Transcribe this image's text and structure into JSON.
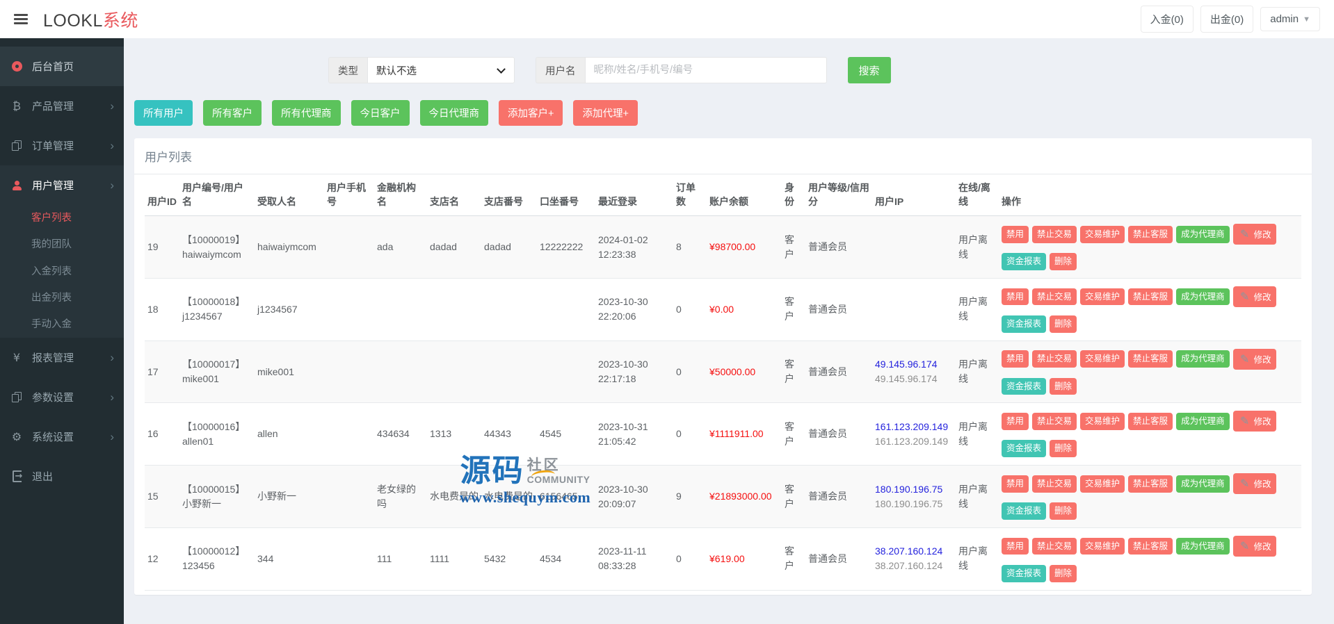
{
  "colors": {
    "accent": "#e9595d",
    "red": "#f8726a",
    "green": "#5cc35c",
    "teal": "#36c2c0",
    "teal2": "#41c5b3",
    "balance": "#f50f0f",
    "link": "#2422dd"
  },
  "topbar": {
    "logo_main": "LOOKL",
    "logo_accent": "系统",
    "deposit_btn": "入金(0)",
    "withdraw_btn": "出金(0)",
    "user_menu": "admin"
  },
  "sidebar": {
    "items": [
      {
        "key": "home",
        "label": "后台首页",
        "icon": "dashboard",
        "icon_red": true,
        "chevron": false
      },
      {
        "key": "products",
        "label": "产品管理",
        "icon": "bitcoin",
        "icon_red": false,
        "chevron": true
      },
      {
        "key": "orders",
        "label": "订单管理",
        "icon": "files",
        "icon_red": false,
        "chevron": true
      },
      {
        "key": "users",
        "label": "用户管理",
        "icon": "user",
        "icon_red": true,
        "chevron": true,
        "submenu": [
          {
            "key": "client-list",
            "label": "客户列表",
            "active": true
          },
          {
            "key": "my-team",
            "label": "我的团队",
            "active": false
          },
          {
            "key": "deposit-list",
            "label": "入金列表",
            "active": false
          },
          {
            "key": "withdraw-list",
            "label": "出金列表",
            "active": false
          },
          {
            "key": "manual-deposit",
            "label": "手动入金",
            "active": false
          }
        ]
      },
      {
        "key": "reports",
        "label": "报表管理",
        "icon": "yen",
        "icon_red": false,
        "chevron": true
      },
      {
        "key": "params",
        "label": "参数设置",
        "icon": "files",
        "icon_red": false,
        "chevron": true
      },
      {
        "key": "system",
        "label": "系统设置",
        "icon": "gears",
        "icon_red": false,
        "chevron": true
      },
      {
        "key": "logout",
        "label": "退出",
        "icon": "logout",
        "icon_red": false,
        "chevron": false
      }
    ]
  },
  "filters": {
    "type_label": "类型",
    "type_value": "默认不选",
    "username_label": "用户名",
    "username_placeholder": "昵称/姓名/手机号/编号",
    "search_btn": "搜索"
  },
  "quick_buttons": [
    {
      "key": "all-users",
      "label": "所有用户",
      "style": "teal"
    },
    {
      "key": "all-clients",
      "label": "所有客户",
      "style": "green"
    },
    {
      "key": "all-agents",
      "label": "所有代理商",
      "style": "green"
    },
    {
      "key": "today-clients",
      "label": "今日客户",
      "style": "green"
    },
    {
      "key": "today-agents",
      "label": "今日代理商",
      "style": "green"
    },
    {
      "key": "add-client",
      "label": "添加客户+",
      "style": "red"
    },
    {
      "key": "add-agent",
      "label": "添加代理+",
      "style": "red"
    }
  ],
  "table": {
    "title": "用户列表",
    "headers": [
      "用户ID",
      "用户编号/用户名",
      "受取人名",
      "用户手机号",
      "金融机构名",
      "支店名",
      "支店番号",
      "口坐番号",
      "最近登录",
      "订单数",
      "账户余额",
      "身份",
      "用户等级/信用分",
      "用户IP",
      "在线/离线",
      "操作"
    ],
    "actions": [
      {
        "key": "disable",
        "label": "禁用",
        "style": "red"
      },
      {
        "key": "forbid-trade",
        "label": "禁止交易",
        "style": "red"
      },
      {
        "key": "trade-maintenance",
        "label": "交易维护",
        "style": "red"
      },
      {
        "key": "forbid-support",
        "label": "禁止客服",
        "style": "red"
      },
      {
        "key": "make-agent",
        "label": "成为代理商",
        "style": "green"
      },
      {
        "key": "edit",
        "label": "修改",
        "style": "red",
        "icon": "pencil"
      },
      {
        "key": "fund-report",
        "label": "资金报表",
        "style": "teal2",
        "newline": true
      },
      {
        "key": "delete",
        "label": "删除",
        "style": "red"
      }
    ],
    "rows": [
      {
        "id": "19",
        "code": "【10000019】",
        "username": "haiwaiymcom",
        "payee": "haiwaiymcom",
        "phone": "",
        "bank": "ada",
        "branch": "dadad",
        "branch_no": "dadad",
        "account": "12222222",
        "login": "2024-01-02 12:23:38",
        "orders": "8",
        "balance": "¥98700.00",
        "role": "客户",
        "level": "普通会员",
        "ip": "",
        "ip2": "",
        "status": "用户离线"
      },
      {
        "id": "18",
        "code": "【10000018】",
        "username": "j1234567",
        "payee": "j1234567",
        "phone": "",
        "bank": "",
        "branch": "",
        "branch_no": "",
        "account": "",
        "login": "2023-10-30 22:20:06",
        "orders": "0",
        "balance": "¥0.00",
        "role": "客户",
        "level": "普通会员",
        "ip": "",
        "ip2": "",
        "status": "用户离线"
      },
      {
        "id": "17",
        "code": "【10000017】",
        "username": "mike001",
        "payee": "mike001",
        "phone": "",
        "bank": "",
        "branch": "",
        "branch_no": "",
        "account": "",
        "login": "2023-10-30 22:17:18",
        "orders": "0",
        "balance": "¥50000.00",
        "role": "客户",
        "level": "普通会员",
        "ip": "49.145.96.174",
        "ip2": "49.145.96.174",
        "status": "用户离线"
      },
      {
        "id": "16",
        "code": "【10000016】",
        "username": "allen01",
        "payee": "allen",
        "phone": "",
        "bank": "434634",
        "branch": "1313",
        "branch_no": "44343",
        "account": "4545",
        "login": "2023-10-31 21:05:42",
        "orders": "0",
        "balance": "¥1111911.00",
        "role": "客户",
        "level": "普通会员",
        "ip": "161.123.209.149",
        "ip2": "161.123.209.149",
        "status": "用户离线"
      },
      {
        "id": "15",
        "code": "【10000015】",
        "username": "小野新一",
        "payee": "小野新一",
        "phone": "",
        "bank": "老女绿的吗",
        "branch": "水电费是的",
        "branch_no": "水电费是的",
        "account": "6156465",
        "login": "2023-10-30 20:09:07",
        "orders": "9",
        "balance": "¥21893000.00",
        "role": "客户",
        "level": "普通会员",
        "ip": "180.190.196.75",
        "ip2": "180.190.196.75",
        "status": "用户离线"
      },
      {
        "id": "12",
        "code": "【10000012】",
        "username": "123456",
        "payee": "344",
        "phone": "",
        "bank": "111",
        "branch": "1111",
        "branch_no": "5432",
        "account": "4534",
        "login": "2023-11-11 08:33:28",
        "orders": "0",
        "balance": "¥619.00",
        "role": "客户",
        "level": "普通会员",
        "ip": "38.207.160.124",
        "ip2": "38.207.160.124",
        "status": "用户离线"
      }
    ]
  },
  "watermark": {
    "cn_main": "源码",
    "cn_sub": "社区",
    "en": "COMMUNITY",
    "url": "www.shequym.com"
  }
}
